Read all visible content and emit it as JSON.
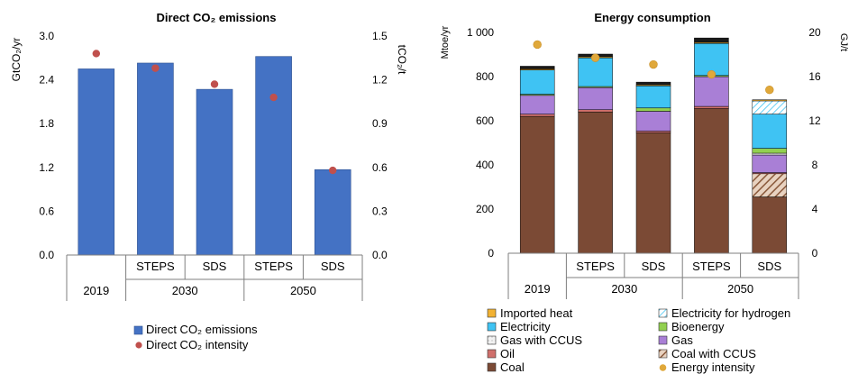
{
  "chart_data": [
    {
      "type": "bar",
      "title": "Direct CO₂ emissions",
      "ylabel": "GtCO₂/yr",
      "y2label": "tCO₂/t",
      "ylim": [
        0,
        3.0
      ],
      "y2lim": [
        0,
        1.5
      ],
      "yticks": [
        "0.0",
        "0.6",
        "1.2",
        "1.8",
        "2.4",
        "3.0"
      ],
      "y2ticks": [
        "0.0",
        "0.3",
        "0.6",
        "0.9",
        "1.2",
        "1.5"
      ],
      "categories": [
        "2019",
        "STEPS",
        "SDS",
        "STEPS",
        "SDS"
      ],
      "groups": [
        "2019",
        "2030",
        "2050"
      ],
      "series": [
        {
          "name": "Direct CO₂ emissions",
          "type": "bar",
          "axis": "left",
          "color": "#4472c4",
          "values": [
            2.55,
            2.63,
            2.27,
            2.72,
            1.17
          ]
        },
        {
          "name": "Direct CO₂ intensity",
          "type": "scatter",
          "axis": "right",
          "color": "#c0504d",
          "values": [
            1.38,
            1.28,
            1.17,
            1.08,
            0.58
          ]
        }
      ]
    },
    {
      "type": "bar",
      "stacked": true,
      "title": "Energy consumption",
      "ylabel": "Mtoe/yr",
      "y2label": "GJ/t",
      "ylim": [
        0,
        1000
      ],
      "y2lim": [
        0,
        20
      ],
      "yticks": [
        "0",
        "200",
        "400",
        "600",
        "800",
        "1 000"
      ],
      "y2ticks": [
        "0",
        "4",
        "8",
        "12",
        "16",
        "20"
      ],
      "categories": [
        "2019",
        "STEPS",
        "SDS",
        "STEPS",
        "SDS"
      ],
      "groups": [
        "2019",
        "2030",
        "2050"
      ],
      "series": [
        {
          "name": "Coal",
          "color": "#7b4a35",
          "values": [
            620,
            640,
            545,
            655,
            255
          ]
        },
        {
          "name": "Coal with CCUS",
          "color": "#c8a68c",
          "pattern": "hatch",
          "values": [
            0,
            0,
            0,
            0,
            105
          ]
        },
        {
          "name": "Oil",
          "color": "#d0706c",
          "values": [
            10,
            10,
            8,
            10,
            5
          ]
        },
        {
          "name": "Gas",
          "color": "#a97fd6",
          "values": [
            85,
            100,
            90,
            135,
            80
          ]
        },
        {
          "name": "Gas with CCUS",
          "color": "#dddddd",
          "pattern": "light",
          "values": [
            0,
            0,
            0,
            0,
            8
          ]
        },
        {
          "name": "Bioenergy",
          "color": "#92d050",
          "values": [
            5,
            5,
            15,
            5,
            22
          ]
        },
        {
          "name": "Electricity",
          "color": "#3fc3f3",
          "values": [
            110,
            130,
            100,
            145,
            155
          ]
        },
        {
          "name": "Electricity for hydrogen",
          "color": "#c5e8f7",
          "pattern": "hatch",
          "values": [
            0,
            0,
            0,
            0,
            60
          ]
        },
        {
          "name": "Imported heat",
          "color": "#f2b233",
          "values": [
            5,
            5,
            5,
            5,
            5
          ]
        },
        {
          "name": "Top cap",
          "color": "#1a1a1a",
          "values": [
            12,
            12,
            12,
            20,
            0
          ]
        },
        {
          "name": "Energy intensity",
          "type": "scatter",
          "axis": "right",
          "color": "#e0a83a",
          "values": [
            18.9,
            17.7,
            17.1,
            16.2,
            14.8
          ]
        }
      ],
      "legend": [
        [
          "Imported heat",
          "Electricity for hydrogen"
        ],
        [
          "Electricity",
          "Bioenergy"
        ],
        [
          "Gas with CCUS",
          "Gas"
        ],
        [
          "Oil",
          "Coal with CCUS"
        ],
        [
          "Coal",
          "Energy intensity"
        ]
      ]
    }
  ]
}
